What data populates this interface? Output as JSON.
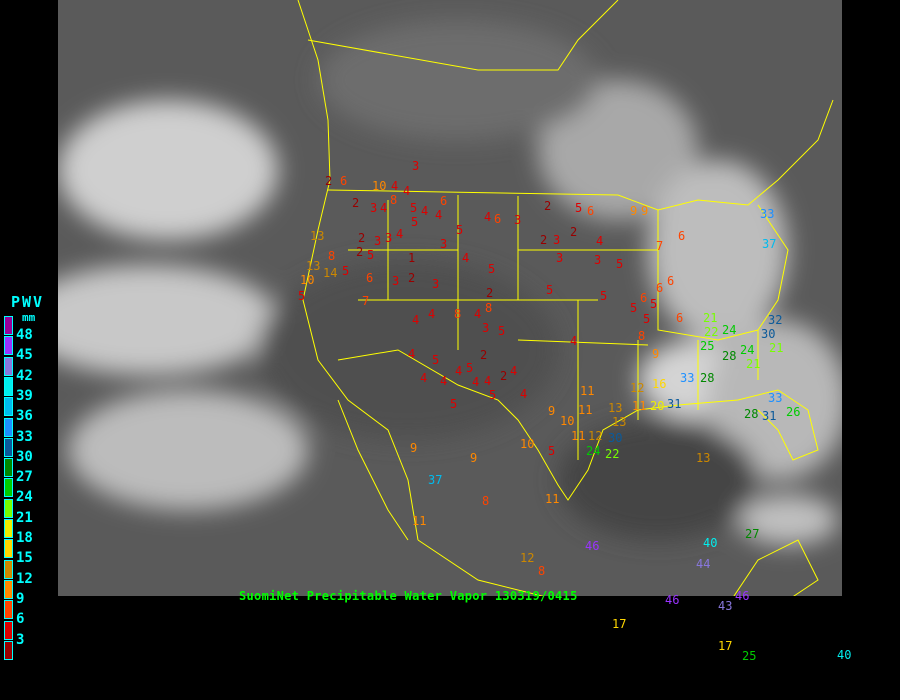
{
  "caption": "SuomiNet Precipitable Water Vapor 130319/0415",
  "legend": {
    "title": "PWV",
    "unit": "mm",
    "labels": [
      "48",
      "45",
      "42",
      "39",
      "36",
      "33",
      "30",
      "27",
      "24",
      "21",
      "18",
      "15",
      "12",
      "9",
      "6",
      "3"
    ],
    "colors": [
      "#990099",
      "#9933ff",
      "#8877dd",
      "#00eeee",
      "#00bbee",
      "#1e90ff",
      "#0b5a9a",
      "#008800",
      "#00cc00",
      "#77ff00",
      "#eeee00",
      "#ffd700",
      "#cc8800",
      "#ff8800",
      "#ff4400",
      "#dd0000",
      "#990000"
    ]
  },
  "map": {
    "background": "grayscale infrared satellite imagery",
    "border_color": "#ffff00"
  },
  "stations": [
    "3",
    "2",
    "6",
    "10",
    "4",
    "8",
    "4",
    "6",
    "2",
    "3",
    "4",
    "5",
    "4",
    "4",
    "5",
    "4",
    "6",
    "3",
    "2",
    "5",
    "6",
    "9",
    "13",
    "8",
    "2",
    "3",
    "2",
    "5",
    "3",
    "4",
    "1",
    "3",
    "5",
    "4",
    "2",
    "3",
    "3",
    "2",
    "3",
    "4",
    "5",
    "13",
    "14",
    "10",
    "5",
    "6",
    "3",
    "7",
    "2",
    "3",
    "2",
    "5",
    "5",
    "4",
    "4",
    "8",
    "4",
    "2",
    "4",
    "5",
    "4",
    "5",
    "3",
    "4",
    "4",
    "5",
    "5",
    "6",
    "5",
    "6",
    "7",
    "9",
    "6",
    "4",
    "4",
    "5",
    "2",
    "5",
    "4",
    "5",
    "4",
    "8",
    "4",
    "8",
    "5",
    "6",
    "6",
    "9",
    "11",
    "12",
    "13",
    "16",
    "9",
    "10",
    "11",
    "12",
    "5",
    "10",
    "11",
    "13",
    "11",
    "20",
    "24",
    "21",
    "30",
    "31",
    "33",
    "28",
    "28",
    "24",
    "25",
    "22",
    "21",
    "24",
    "30",
    "32",
    "33",
    "31",
    "28",
    "26",
    "33",
    "37",
    "27",
    "40",
    "44",
    "46",
    "43",
    "46",
    "46",
    "17",
    "17",
    "25",
    "40",
    "37",
    "11",
    "12",
    "8",
    "9",
    "11",
    "8",
    "9",
    "5",
    "13",
    "22",
    "21",
    "32"
  ]
}
